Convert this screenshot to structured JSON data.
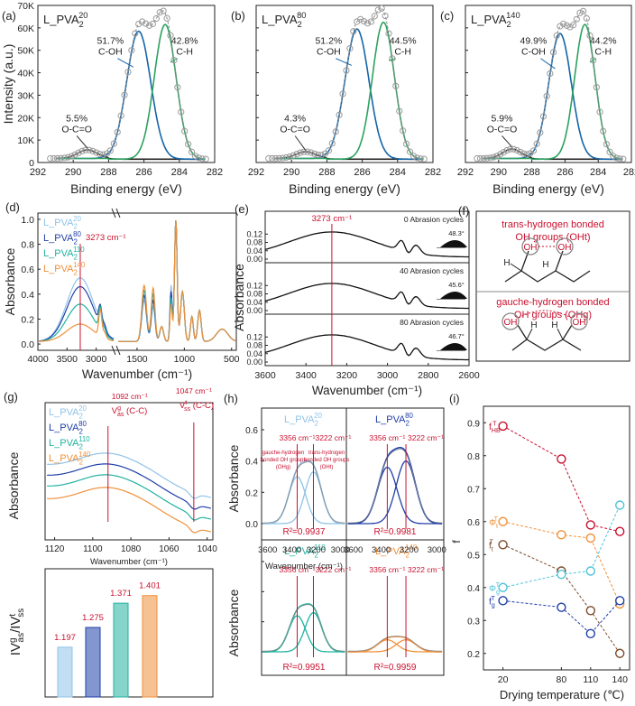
{
  "colors": {
    "blue": "#1565a8",
    "green": "#2ca25f",
    "gray": "#9a9a9a",
    "red": "#c8102e",
    "light_blue": "#8fc3e8",
    "dark_blue": "#1f3fa8",
    "teal": "#20b2a0",
    "orange": "#f0903a",
    "brown": "#7a4a2a",
    "dark": "#222222"
  },
  "chart_data": [
    {
      "id": "a",
      "type": "line",
      "panel_label": "(a)",
      "sample": "L_PVA",
      "sub": "2",
      "sup": "20",
      "ylabel": "Intensity (a.u.)",
      "xlabel": "Binding energy (eV)",
      "xlim": [
        292,
        282
      ],
      "ylim": [
        0,
        70000
      ],
      "xticks": [
        "292",
        "290",
        "288",
        "286",
        "284",
        "282"
      ],
      "yticks": [
        "0",
        "10K",
        "20K",
        "30K",
        "40K",
        "50K",
        "60K",
        "70K"
      ],
      "peaks": [
        {
          "center": 289.2,
          "amp": 3800,
          "label": "5.5%",
          "name": "O-C=O"
        },
        {
          "center": 286.3,
          "amp": 57000,
          "label": "51.7%",
          "name": "C-OH"
        },
        {
          "center": 284.8,
          "amp": 60000,
          "label": "42.8%",
          "name": "C-H"
        }
      ]
    },
    {
      "id": "b",
      "type": "line",
      "panel_label": "(b)",
      "sample": "L_PVA",
      "sub": "2",
      "sup": "80",
      "xlabel": "Binding energy (eV)",
      "xlim": [
        292,
        282
      ],
      "ylim": [
        0,
        70000
      ],
      "xticks": [
        "292",
        "290",
        "288",
        "286",
        "284",
        "282"
      ],
      "yticks": [
        "0",
        "10K",
        "20K",
        "30K",
        "40K",
        "50K",
        "60K",
        "70K"
      ],
      "peaks": [
        {
          "center": 289.2,
          "amp": 3000,
          "label": "4.3%",
          "name": "O-C=O"
        },
        {
          "center": 286.3,
          "amp": 58000,
          "label": "51.2%",
          "name": "C-OH"
        },
        {
          "center": 284.8,
          "amp": 61000,
          "label": "44.5%",
          "name": "C-H"
        }
      ]
    },
    {
      "id": "c",
      "type": "line",
      "panel_label": "(c)",
      "sample": "L_PVA",
      "sub": "2",
      "sup": "140",
      "xlabel": "Binding energy (eV)",
      "xlim": [
        292,
        282
      ],
      "ylim": [
        0,
        70000
      ],
      "xticks": [
        "292",
        "290",
        "288",
        "286",
        "284",
        "282"
      ],
      "yticks": [
        "0",
        "10K",
        "20K",
        "30K",
        "40K",
        "50K",
        "60K",
        "70K"
      ],
      "peaks": [
        {
          "center": 289.2,
          "amp": 4200,
          "label": "5.9%",
          "name": "O-C=O"
        },
        {
          "center": 286.3,
          "amp": 56000,
          "label": "49.9%",
          "name": "C-OH"
        },
        {
          "center": 284.8,
          "amp": 60000,
          "label": "44.2%",
          "name": "C-H"
        }
      ]
    },
    {
      "id": "d",
      "type": "line",
      "panel_label": "(d)",
      "ylabel": "Absorbance",
      "xlabel": "Wavenumber (cm⁻¹)",
      "ylim": [
        -0.05,
        1.05
      ],
      "xticks": [
        "4000",
        "3500",
        "3000",
        "1500",
        "1000",
        "500"
      ],
      "yticks": [
        "0.0",
        "0.2",
        "0.4",
        "0.6",
        "0.8",
        "1.0"
      ],
      "marker_label": "3273 cm⁻¹",
      "legend": [
        {
          "name": "L_PVA",
          "sub": "2",
          "sup": "20"
        },
        {
          "name": "L_PVA",
          "sub": "2",
          "sup": "80"
        },
        {
          "name": "L_PVA",
          "sub": "2",
          "sup": "110"
        },
        {
          "name": "L_PVA",
          "sub": "2",
          "sup": "140"
        }
      ],
      "oh_peak_heights": [
        0.51,
        0.44,
        0.3,
        0.14
      ]
    },
    {
      "id": "e",
      "type": "line",
      "panel_label": "(e)",
      "ylabel": "Absorbance",
      "xlabel": "Wavenumber (cm⁻¹)",
      "xlim": [
        3600,
        2600
      ],
      "xticks": [
        "3600",
        "3400",
        "3200",
        "3000",
        "2800",
        "2600"
      ],
      "yticks": [
        "0.00",
        "0.04",
        "0.08",
        "0.12"
      ],
      "marker_label": "3273 cm⁻¹",
      "subpanels": [
        {
          "label": "0 Abrasion cycles",
          "angle": "48.3°"
        },
        {
          "label": "40 Abrasion cycles",
          "angle": "45.6°"
        },
        {
          "label": "80 Abrasion cycles",
          "angle": "46.7°"
        }
      ]
    },
    {
      "id": "g",
      "type": "line",
      "panel_label": "(g)",
      "ylabel": "Absorbance",
      "xlabel": "Wavenumber (cm⁻¹)",
      "xlim": [
        1125,
        1037
      ],
      "xticks": [
        "1120",
        "1100",
        "1080",
        "1060",
        "1040"
      ],
      "peak1": "1092 cm⁻¹",
      "peak1_sym": "V",
      "peak1_sup": "g",
      "peak1_sub": "as",
      "peak1_tail": " (C-C)",
      "peak2": "1047 cm⁻¹",
      "peak2_sym": "V",
      "peak2_sup": "t",
      "peak2_sub": "ss",
      "peak2_tail": " (C-C)",
      "legend": [
        {
          "name": "L_PVA",
          "sub": "2",
          "sup": "20"
        },
        {
          "name": "L_PVA",
          "sub": "2",
          "sup": "80"
        },
        {
          "name": "L_PVA",
          "sub": "2",
          "sup": "110"
        },
        {
          "name": "L_PVA",
          "sub": "2",
          "sup": "140"
        }
      ]
    },
    {
      "id": "g2",
      "type": "bar",
      "ylabel_parts": [
        "I",
        "V",
        "g",
        "as",
        "/I",
        "V",
        "t",
        "ss"
      ],
      "values": [
        1.197,
        1.275,
        1.371,
        1.401
      ],
      "labels": [
        "1.197",
        "1.275",
        "1.371",
        "1.401"
      ],
      "ylim": [
        1.0,
        1.5
      ]
    },
    {
      "id": "h",
      "type": "line",
      "panel_label": "(h)",
      "ylabel": "Absorbance",
      "xlabel": "Wavenumber (cm⁻¹)",
      "xlim": [
        3650,
        2950
      ],
      "xticks": [
        "3600",
        "3400",
        "3200",
        "3000"
      ],
      "yticks": [
        "0.0",
        "0.2",
        "0.4",
        "0.6"
      ],
      "line1": "3356 cm⁻¹",
      "line2": "3222 cm⁻¹",
      "gauche_note": [
        "gauche-hydrogen",
        "bonded OH groups",
        "(OHg)"
      ],
      "trans_note": [
        "trans-hydrogen",
        "bonded OH groups",
        "(OHt)"
      ],
      "subpanels": [
        {
          "name": "L_PVA",
          "sub": "2",
          "sup": "20",
          "r2": "R²=0.9937",
          "a1": 0.3,
          "a2": 0.33
        },
        {
          "name": "L_PVA",
          "sub": "2",
          "sup": "80",
          "r2": "R²=0.9981",
          "a1": 0.36,
          "a2": 0.4
        },
        {
          "name": "L_PVA",
          "sub": "2",
          "sup": "110",
          "r2": "R²=0.9951",
          "a1": 0.24,
          "a2": 0.26
        },
        {
          "name": "L_PVA",
          "sub": "2",
          "sup": "140",
          "r2": "R²=0.9959",
          "a1": 0.08,
          "a2": 0.08
        }
      ]
    },
    {
      "id": "i",
      "type": "scatter",
      "panel_label": "(i)",
      "ylabel": "f",
      "xlabel": "Drying temperature (℃)",
      "x": [
        20,
        80,
        110,
        140
      ],
      "xticks": [
        "20",
        "80",
        "110",
        "140"
      ],
      "ylim": [
        0.15,
        0.95
      ],
      "yticks": [
        "0.2",
        "0.3",
        "0.4",
        "0.5",
        "0.6",
        "0.7",
        "0.8",
        "0.9"
      ],
      "series": [
        {
          "name": "f",
          "sub": "HB",
          "sup": "T",
          "values": [
            0.89,
            0.79,
            0.59,
            0.57
          ]
        },
        {
          "name": "Φ",
          "sub": "t",
          "sup": "T",
          "values": [
            0.6,
            0.56,
            0.55,
            0.35
          ]
        },
        {
          "name": "f",
          "sub": "t",
          "sup": "T",
          "values": [
            0.53,
            0.45,
            0.33,
            0.2
          ]
        },
        {
          "name": "Φ",
          "sub": "g",
          "sup": "T",
          "values": [
            0.4,
            0.44,
            0.45,
            0.65
          ]
        },
        {
          "name": "f",
          "sub": "g",
          "sup": "T",
          "values": [
            0.36,
            0.34,
            0.26,
            0.36
          ]
        }
      ]
    }
  ],
  "schematic": {
    "panel_label": "(f)",
    "trans_title": "trans-hydrogen bonded",
    "trans_sub": "OH groups (OHt)",
    "gauche_title": "gauche-hydrogen bonded",
    "gauche_sub": "OH groups (OHg)",
    "oh": "OH",
    "h": "H"
  }
}
